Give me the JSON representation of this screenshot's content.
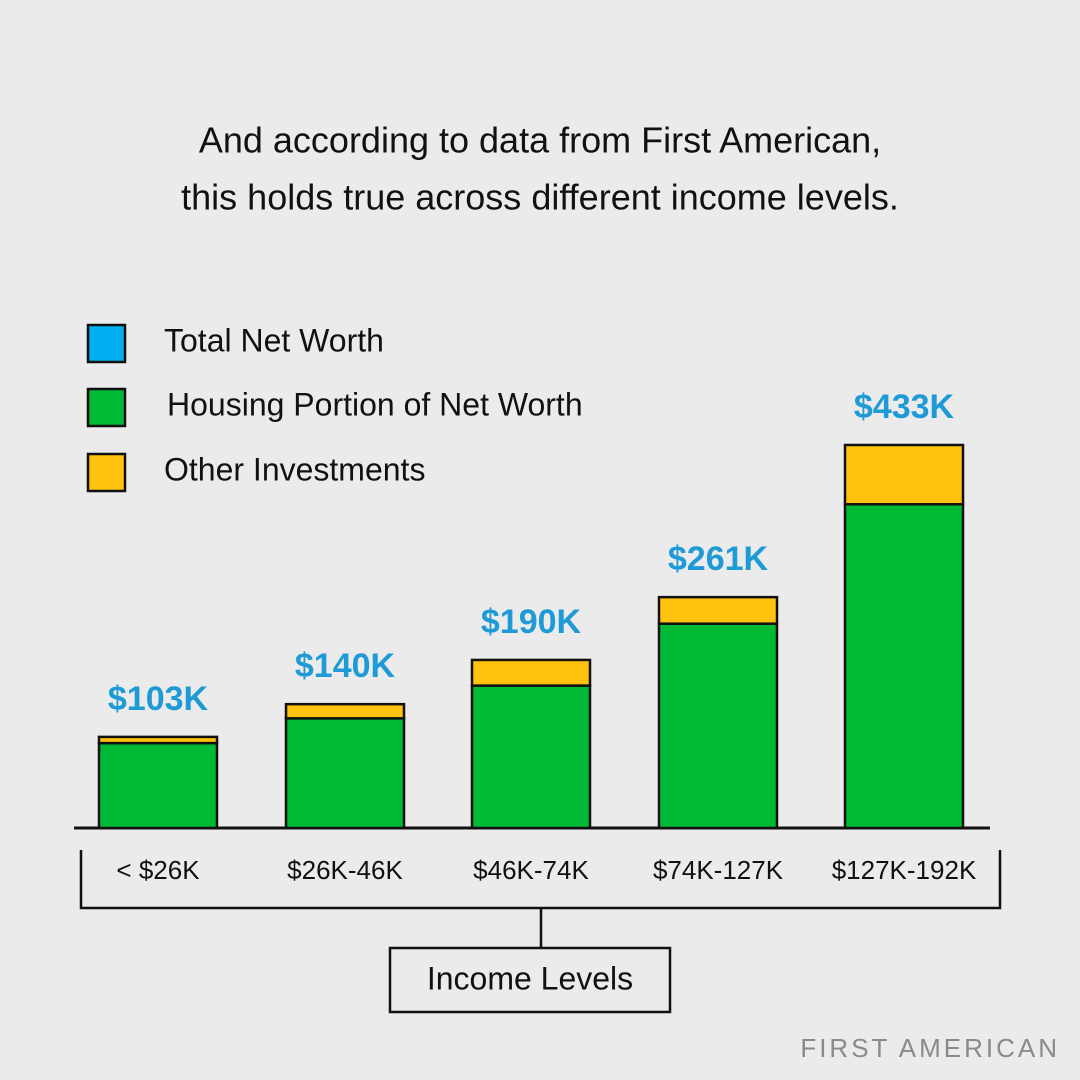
{
  "chart_data": {
    "type": "stacked_bar",
    "title": [
      "And according to data from First American,",
      "this holds true across different income levels."
    ],
    "categories": [
      "< $26K",
      "$26K-46K",
      "$46K-74K",
      "$74K-127K",
      "$127K-192K"
    ],
    "x_label": "Income Levels",
    "series": [
      {
        "name": "Total Net Worth",
        "color": "#00b0f0",
        "values": [
          103,
          140,
          190,
          261,
          433
        ],
        "value_labels": [
          "$103K",
          "$140K",
          "$190K",
          "$261K",
          "$433K"
        ]
      },
      {
        "name": "Housing Portion of Net Worth",
        "color": "#00b935",
        "values": [
          96,
          124,
          161,
          231,
          366
        ]
      },
      {
        "name": "Other Investments",
        "color": "#ffc20e",
        "values": [
          7,
          16,
          29,
          30,
          67
        ]
      }
    ],
    "label_color": "#1e9ad6"
  },
  "footer": "FIRST AMERICAN"
}
